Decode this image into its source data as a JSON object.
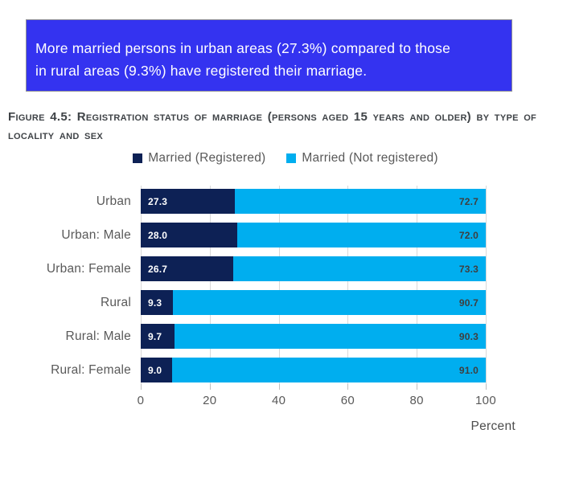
{
  "banner": {
    "line1": "More married persons in urban areas (27.3%) compared to those",
    "line2": "in rural areas (9.3%) have registered their marriage.",
    "background_color": "#3433f0",
    "text_color": "#ffffff"
  },
  "caption": {
    "text": "Figure 4.5: Registration status of marriage (persons aged 15 years and older) by type of locality and sex"
  },
  "chart_data": {
    "type": "bar",
    "orientation": "horizontal",
    "stacked": true,
    "categories": [
      "Urban",
      "Urban: Male",
      "Urban: Female",
      "Rural",
      "Rural: Male",
      "Rural: Female"
    ],
    "series": [
      {
        "name": "Married (Registered)",
        "color": "#0d2155",
        "values": [
          27.3,
          28.0,
          26.7,
          9.3,
          9.7,
          9.0
        ]
      },
      {
        "name": "Married (Not registered)",
        "color": "#00aeef",
        "values": [
          72.7,
          72.0,
          73.3,
          90.7,
          90.3,
          91.0
        ]
      }
    ],
    "xlabel": "Percent",
    "xlim": [
      0,
      100
    ],
    "xticks": [
      0,
      20,
      40,
      60,
      80,
      100
    ],
    "grid": true,
    "gridline_color": "#d9d9d9",
    "legend_position": "top",
    "value_labels": "inside"
  }
}
